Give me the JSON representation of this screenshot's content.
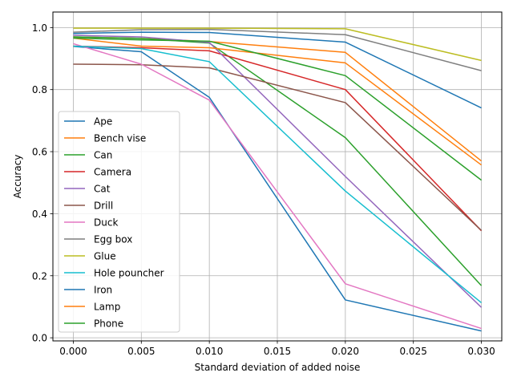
{
  "chart_data": {
    "type": "line",
    "title": "",
    "xlabel": "Standard deviation of added noise",
    "ylabel": "Accuracy",
    "x": [
      0.0,
      0.005,
      0.01,
      0.02,
      0.03
    ],
    "xlim": [
      -0.0015,
      0.0315
    ],
    "ylim": [
      -0.01,
      1.05
    ],
    "xticks": [
      0.0,
      0.005,
      0.01,
      0.015,
      0.02,
      0.025,
      0.03
    ],
    "xtick_labels": [
      "0.000",
      "0.005",
      "0.010",
      "0.015",
      "0.020",
      "0.025",
      "0.030"
    ],
    "yticks": [
      0.0,
      0.2,
      0.4,
      0.6,
      0.8,
      1.0
    ],
    "ytick_labels": [
      "0.0",
      "0.2",
      "0.4",
      "0.6",
      "0.8",
      "1.0"
    ],
    "grid": true,
    "legend_position": "lower-left",
    "series": [
      {
        "name": "Ape",
        "color": "#1f77b4",
        "values": [
          0.939,
          0.922,
          0.775,
          0.122,
          0.022
        ]
      },
      {
        "name": "Bench vise",
        "color": "#ff7f0e",
        "values": [
          0.97,
          0.965,
          0.955,
          0.92,
          0.57
        ]
      },
      {
        "name": "Can",
        "color": "#2ca02c",
        "values": [
          0.97,
          0.965,
          0.95,
          0.645,
          0.168
        ]
      },
      {
        "name": "Camera",
        "color": "#d62728",
        "values": [
          0.94,
          0.935,
          0.925,
          0.8,
          0.345
        ]
      },
      {
        "name": "Cat",
        "color": "#9467bd",
        "values": [
          0.975,
          0.97,
          0.952,
          0.52,
          0.098
        ]
      },
      {
        "name": "Drill",
        "color": "#8c564b",
        "values": [
          0.882,
          0.88,
          0.87,
          0.758,
          0.346
        ]
      },
      {
        "name": "Duck",
        "color": "#e377c2",
        "values": [
          0.948,
          0.882,
          0.766,
          0.174,
          0.03
        ]
      },
      {
        "name": "Egg box",
        "color": "#7f7f7f",
        "values": [
          0.985,
          0.993,
          0.994,
          0.977,
          0.861
        ]
      },
      {
        "name": "Glue",
        "color": "#bcbd22",
        "values": [
          0.998,
          0.998,
          0.998,
          0.996,
          0.894
        ]
      },
      {
        "name": "Hole pouncher",
        "color": "#17becf",
        "values": [
          0.94,
          0.932,
          0.89,
          0.473,
          0.113
        ]
      },
      {
        "name": "Iron",
        "color": "#1f77b4",
        "values": [
          0.981,
          0.985,
          0.984,
          0.953,
          0.741
        ]
      },
      {
        "name": "Lamp",
        "color": "#ff7f0e",
        "values": [
          0.966,
          0.94,
          0.935,
          0.886,
          0.557
        ]
      },
      {
        "name": "Phone",
        "color": "#2ca02c",
        "values": [
          0.966,
          0.96,
          0.956,
          0.845,
          0.508
        ]
      }
    ]
  }
}
